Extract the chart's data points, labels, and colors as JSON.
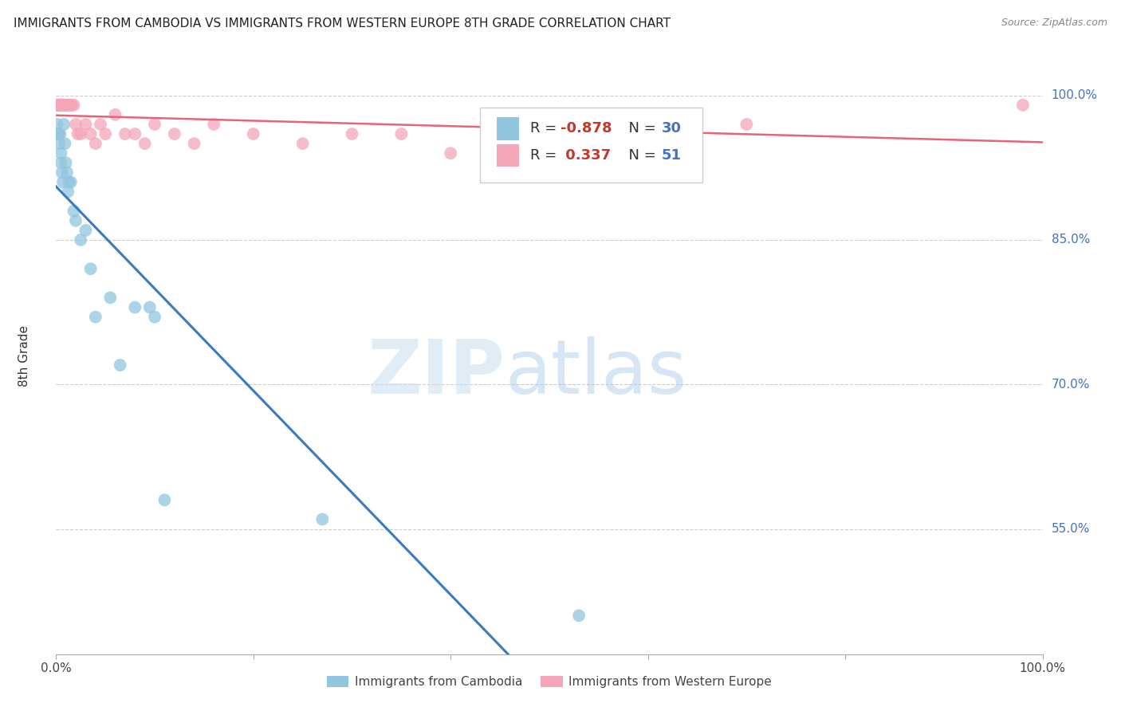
{
  "title": "IMMIGRANTS FROM CAMBODIA VS IMMIGRANTS FROM WESTERN EUROPE 8TH GRADE CORRELATION CHART",
  "source": "Source: ZipAtlas.com",
  "ylabel": "8th Grade",
  "ytick_labels": [
    "100.0%",
    "85.0%",
    "70.0%",
    "55.0%"
  ],
  "ytick_values": [
    1.0,
    0.85,
    0.7,
    0.55
  ],
  "xlim": [
    0.0,
    1.0
  ],
  "ylim": [
    0.42,
    1.04
  ],
  "legend_R_cambodia": "-0.878",
  "legend_N_cambodia": "30",
  "legend_R_western": "0.337",
  "legend_N_western": "51",
  "blue_color": "#92c5de",
  "pink_color": "#f4a6b8",
  "blue_line_color": "#3a7bbf",
  "pink_line_color": "#e8637a",
  "cambodia_x": [
    0.001,
    0.002,
    0.003,
    0.003,
    0.004,
    0.005,
    0.005,
    0.006,
    0.007,
    0.008,
    0.009,
    0.01,
    0.011,
    0.012,
    0.013,
    0.015,
    0.018,
    0.02,
    0.025,
    0.03,
    0.035,
    0.04,
    0.055,
    0.065,
    0.08,
    0.095,
    0.1,
    0.11,
    0.27,
    0.53
  ],
  "cambodia_y": [
    0.97,
    0.96,
    0.96,
    0.95,
    0.96,
    0.94,
    0.93,
    0.92,
    0.91,
    0.97,
    0.95,
    0.93,
    0.92,
    0.9,
    0.91,
    0.91,
    0.88,
    0.87,
    0.85,
    0.86,
    0.82,
    0.77,
    0.79,
    0.72,
    0.78,
    0.78,
    0.77,
    0.58,
    0.56,
    0.46
  ],
  "western_x": [
    0.001,
    0.001,
    0.002,
    0.002,
    0.003,
    0.003,
    0.003,
    0.004,
    0.004,
    0.005,
    0.005,
    0.006,
    0.006,
    0.007,
    0.007,
    0.008,
    0.008,
    0.009,
    0.01,
    0.011,
    0.012,
    0.013,
    0.014,
    0.015,
    0.016,
    0.018,
    0.02,
    0.022,
    0.025,
    0.03,
    0.035,
    0.04,
    0.045,
    0.05,
    0.06,
    0.07,
    0.08,
    0.09,
    0.1,
    0.12,
    0.14,
    0.16,
    0.2,
    0.25,
    0.3,
    0.35,
    0.4,
    0.5,
    0.6,
    0.7,
    0.98
  ],
  "western_y": [
    0.99,
    0.99,
    0.99,
    0.99,
    0.99,
    0.99,
    0.99,
    0.99,
    0.99,
    0.99,
    0.99,
    0.99,
    0.99,
    0.99,
    0.99,
    0.99,
    0.99,
    0.99,
    0.99,
    0.99,
    0.99,
    0.99,
    0.99,
    0.99,
    0.99,
    0.99,
    0.97,
    0.96,
    0.96,
    0.97,
    0.96,
    0.95,
    0.97,
    0.96,
    0.98,
    0.96,
    0.96,
    0.95,
    0.97,
    0.96,
    0.95,
    0.97,
    0.96,
    0.95,
    0.96,
    0.96,
    0.94,
    0.96,
    0.96,
    0.97,
    0.99
  ]
}
